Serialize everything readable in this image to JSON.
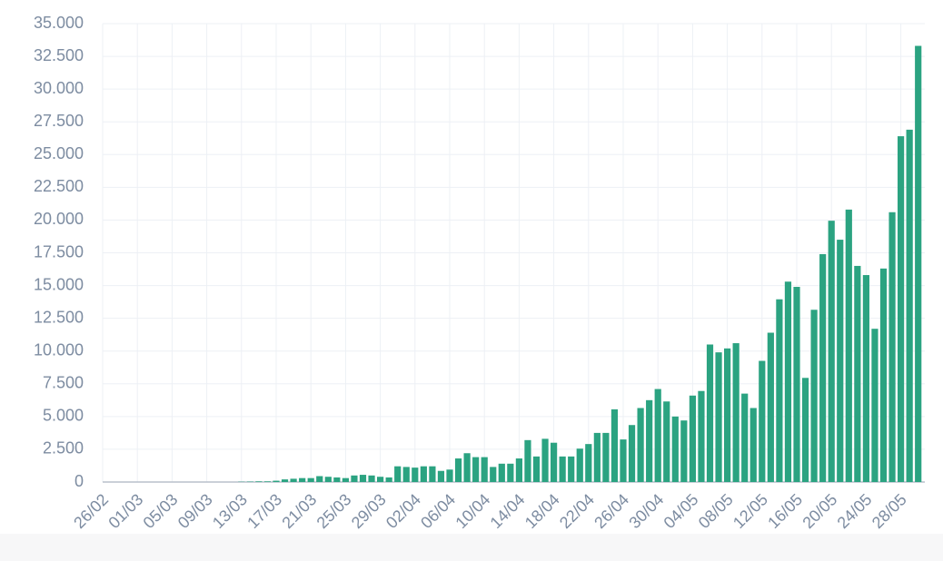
{
  "chart_data": {
    "type": "bar",
    "categories": [
      "26/02",
      null,
      null,
      null,
      "01/03",
      null,
      null,
      null,
      "05/03",
      null,
      null,
      null,
      "09/03",
      null,
      null,
      null,
      "13/03",
      null,
      null,
      null,
      "17/03",
      null,
      null,
      null,
      "21/03",
      null,
      null,
      null,
      "25/03",
      null,
      null,
      null,
      "29/03",
      null,
      null,
      null,
      "02/04",
      null,
      null,
      null,
      "06/04",
      null,
      null,
      null,
      "10/04",
      null,
      null,
      null,
      "14/04",
      null,
      null,
      null,
      "18/04",
      null,
      null,
      null,
      "22/04",
      null,
      null,
      null,
      "26/04",
      null,
      null,
      null,
      "30/04",
      null,
      null,
      null,
      "04/05",
      null,
      null,
      null,
      "08/05",
      null,
      null,
      null,
      "12/05",
      null,
      null,
      null,
      "16/05",
      null,
      null,
      null,
      "20/05",
      null,
      null,
      null,
      "24/05",
      null,
      null,
      null,
      "28/05",
      null,
      null
    ],
    "values": [
      0,
      0,
      0,
      0,
      0,
      0,
      0,
      0,
      0,
      0,
      0,
      0,
      0,
      0,
      0,
      0,
      20,
      30,
      50,
      50,
      100,
      200,
      250,
      300,
      300,
      450,
      400,
      350,
      300,
      500,
      550,
      500,
      400,
      350,
      1200,
      1150,
      1100,
      1200,
      1200,
      850,
      950,
      1800,
      2200,
      1900,
      1900,
      1150,
      1400,
      1400,
      1800,
      3200,
      1950,
      3300,
      3000,
      1950,
      1950,
      2550,
      2900,
      3750,
      3750,
      5550,
      3250,
      4350,
      5650,
      6250,
      7100,
      6150,
      5000,
      4700,
      6600,
      6950,
      10500,
      9900,
      10200,
      10600,
      6750,
      5650,
      9250,
      11400,
      13950,
      15300,
      14900,
      7950,
      13150,
      17400,
      19950,
      18500,
      20800,
      16500,
      15800,
      11700,
      16300,
      20600,
      26400,
      26900,
      33300
    ],
    "color": "#2ba381",
    "ylim": [
      0,
      35000
    ],
    "yticks": [
      0,
      {
        "value": 2500,
        "label": "2.500"
      },
      {
        "value": 5000,
        "label": "5.000"
      },
      {
        "value": 7500,
        "label": "7.500"
      },
      {
        "value": 10000,
        "label": "10.000"
      },
      {
        "value": 12500,
        "label": "12.500"
      },
      {
        "value": 15000,
        "label": "15.000"
      },
      {
        "value": 17500,
        "label": "17.500"
      },
      {
        "value": 20000,
        "label": "20.000"
      },
      {
        "value": 22500,
        "label": "22.500"
      },
      {
        "value": 25000,
        "label": "25.000"
      },
      {
        "value": 27500,
        "label": "27.500"
      },
      {
        "value": 30000,
        "label": "30.000"
      },
      {
        "value": 32500,
        "label": "32.500"
      },
      {
        "value": 35000,
        "label": "35.000"
      }
    ],
    "grid": true
  }
}
